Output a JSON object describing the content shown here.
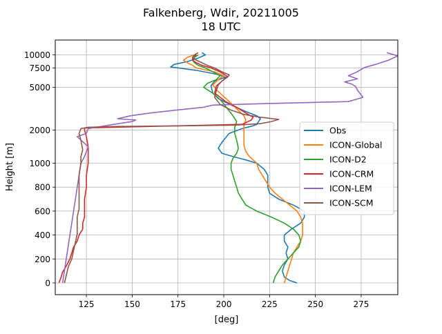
{
  "chart_data": {
    "type": "line",
    "title": "Falkenberg, Wdir, 20211005",
    "subtitle": "18 UTC",
    "xlabel": "[deg]",
    "ylabel": "Height [m]",
    "xlim": [
      108,
      295
    ],
    "x_ticks": [
      125,
      150,
      175,
      200,
      225,
      250,
      275
    ],
    "y_ticks": [
      {
        "value": 0,
        "label": "0"
      },
      {
        "value": 200,
        "label": "200"
      },
      {
        "value": 400,
        "label": "400"
      },
      {
        "value": 600,
        "label": "600"
      },
      {
        "value": 800,
        "label": "800"
      },
      {
        "value": 1000,
        "label": "1000"
      },
      {
        "value": 2000,
        "label": "2000"
      },
      {
        "value": 5000,
        "label": "5000"
      },
      {
        "value": 7500,
        "label": "7500"
      },
      {
        "value": 10000,
        "label": "10000"
      }
    ],
    "grid": true,
    "legend_position": "center-right",
    "series": [
      {
        "name": "Obs",
        "color": "#1f77b4",
        "points": [
          [
            240,
            0
          ],
          [
            236,
            20
          ],
          [
            233,
            50
          ],
          [
            232,
            100
          ],
          [
            233,
            150
          ],
          [
            235,
            200
          ],
          [
            234,
            250
          ],
          [
            235,
            300
          ],
          [
            233,
            350
          ],
          [
            233,
            400
          ],
          [
            237,
            450
          ],
          [
            242,
            500
          ],
          [
            244,
            550
          ],
          [
            244,
            600
          ],
          [
            238,
            650
          ],
          [
            230,
            700
          ],
          [
            225,
            750
          ],
          [
            224,
            800
          ],
          [
            224,
            850
          ],
          [
            224,
            900
          ],
          [
            222,
            950
          ],
          [
            218,
            1000
          ],
          [
            212,
            1100
          ],
          [
            205,
            1200
          ],
          [
            199,
            1300
          ],
          [
            197,
            1450
          ],
          [
            198,
            1550
          ],
          [
            200,
            1700
          ],
          [
            203,
            1900
          ],
          [
            210,
            2100
          ],
          [
            216,
            2300
          ],
          [
            218,
            2400
          ],
          [
            219,
            2600
          ],
          [
            220,
            2800
          ],
          [
            218,
            3000
          ],
          [
            212,
            3300
          ],
          [
            205,
            3700
          ],
          [
            197,
            4200
          ],
          [
            194,
            4600
          ],
          [
            193,
            5200
          ],
          [
            195,
            5800
          ],
          [
            201,
            6300
          ],
          [
            196,
            6700
          ],
          [
            185,
            7200
          ],
          [
            171,
            7700
          ],
          [
            173,
            8200
          ],
          [
            180,
            8700
          ],
          [
            186,
            9400
          ],
          [
            190,
            10000
          ],
          [
            188,
            10500
          ]
        ]
      },
      {
        "name": "ICON-Global",
        "color": "#ff7f0e",
        "points": [
          [
            233,
            0
          ],
          [
            234,
            50
          ],
          [
            235,
            100
          ],
          [
            236,
            150
          ],
          [
            237,
            200
          ],
          [
            238,
            250
          ],
          [
            240,
            300
          ],
          [
            242,
            350
          ],
          [
            243,
            400
          ],
          [
            243,
            450
          ],
          [
            243,
            500
          ],
          [
            242,
            550
          ],
          [
            240,
            600
          ],
          [
            236,
            650
          ],
          [
            232,
            700
          ],
          [
            228,
            750
          ],
          [
            225,
            800
          ],
          [
            223,
            850
          ],
          [
            221,
            900
          ],
          [
            219,
            950
          ],
          [
            218,
            1000
          ],
          [
            216,
            1100
          ],
          [
            214,
            1200
          ],
          [
            212,
            1350
          ],
          [
            211,
            1550
          ],
          [
            211,
            1750
          ],
          [
            211,
            2000
          ],
          [
            211,
            2300
          ],
          [
            212,
            2700
          ],
          [
            211,
            3000
          ],
          [
            207,
            3500
          ],
          [
            203,
            4000
          ],
          [
            197,
            4700
          ],
          [
            194,
            5300
          ],
          [
            197,
            6000
          ],
          [
            200,
            6500
          ],
          [
            195,
            7000
          ],
          [
            185,
            7500
          ],
          [
            183,
            8000
          ],
          [
            180,
            8500
          ],
          [
            178,
            9000
          ],
          [
            180,
            9500
          ],
          [
            184,
            10000
          ],
          [
            186,
            10500
          ]
        ]
      },
      {
        "name": "ICON-D2",
        "color": "#2ca02c",
        "points": [
          [
            227,
            0
          ],
          [
            228,
            50
          ],
          [
            230,
            100
          ],
          [
            232,
            150
          ],
          [
            235,
            200
          ],
          [
            238,
            250
          ],
          [
            241,
            300
          ],
          [
            242,
            350
          ],
          [
            241,
            400
          ],
          [
            238,
            450
          ],
          [
            233,
            500
          ],
          [
            226,
            550
          ],
          [
            218,
            600
          ],
          [
            212,
            650
          ],
          [
            210,
            700
          ],
          [
            208,
            750
          ],
          [
            207,
            800
          ],
          [
            206,
            850
          ],
          [
            205,
            900
          ],
          [
            204,
            950
          ],
          [
            204,
            1000
          ],
          [
            205,
            1150
          ],
          [
            207,
            1300
          ],
          [
            208,
            1450
          ],
          [
            207,
            1700
          ],
          [
            206,
            1900
          ],
          [
            206,
            2200
          ],
          [
            207,
            2600
          ],
          [
            205,
            3000
          ],
          [
            202,
            3500
          ],
          [
            199,
            4000
          ],
          [
            195,
            4500
          ],
          [
            189,
            5000
          ],
          [
            191,
            5500
          ],
          [
            196,
            6000
          ],
          [
            198,
            6500
          ],
          [
            194,
            7000
          ],
          [
            190,
            7500
          ],
          [
            186,
            8000
          ],
          [
            184,
            8500
          ],
          [
            183,
            9000
          ],
          [
            184,
            9500
          ],
          [
            186,
            10000
          ]
        ]
      },
      {
        "name": "ICON-CRM",
        "color": "#d62728",
        "points": [
          [
            110,
            0
          ],
          [
            111,
            40
          ],
          [
            112,
            90
          ],
          [
            114,
            140
          ],
          [
            116,
            200
          ],
          [
            117,
            250
          ],
          [
            118,
            300
          ],
          [
            120,
            350
          ],
          [
            121,
            400
          ],
          [
            123,
            450
          ],
          [
            123,
            500
          ],
          [
            124,
            550
          ],
          [
            124,
            600
          ],
          [
            124,
            700
          ],
          [
            125,
            800
          ],
          [
            125,
            900
          ],
          [
            126,
            1000
          ],
          [
            126,
            1200
          ],
          [
            126,
            1500
          ],
          [
            125,
            1800
          ],
          [
            124,
            2000
          ],
          [
            124,
            2150
          ],
          [
            210,
            2400
          ],
          [
            215,
            2700
          ],
          [
            216,
            2900
          ],
          [
            212,
            3200
          ],
          [
            207,
            3600
          ],
          [
            201,
            4000
          ],
          [
            195,
            4600
          ],
          [
            196,
            5200
          ],
          [
            199,
            5800
          ],
          [
            202,
            6400
          ],
          [
            198,
            7000
          ],
          [
            193,
            7500
          ],
          [
            188,
            8000
          ],
          [
            185,
            8500
          ],
          [
            183,
            9000
          ],
          [
            183,
            9500
          ],
          [
            185,
            10000
          ]
        ]
      },
      {
        "name": "ICON-LEM",
        "color": "#9467bd",
        "points": [
          [
            112,
            0
          ],
          [
            113,
            100
          ],
          [
            114,
            200
          ],
          [
            115,
            300
          ],
          [
            116,
            400
          ],
          [
            117,
            500
          ],
          [
            118,
            600
          ],
          [
            119,
            700
          ],
          [
            120,
            800
          ],
          [
            121,
            900
          ],
          [
            122,
            1000
          ],
          [
            124,
            1200
          ],
          [
            126,
            1500
          ],
          [
            124,
            1600
          ],
          [
            120,
            1800
          ],
          [
            125,
            1900
          ],
          [
            126,
            2100
          ],
          [
            140,
            2400
          ],
          [
            150,
            2600
          ],
          [
            152,
            2700
          ],
          [
            142,
            2800
          ],
          [
            149,
            3000
          ],
          [
            160,
            3200
          ],
          [
            174,
            3400
          ],
          [
            189,
            3600
          ],
          [
            194,
            3750
          ],
          [
            220,
            3850
          ],
          [
            268,
            4000
          ],
          [
            276,
            4300
          ],
          [
            273,
            4800
          ],
          [
            272,
            5100
          ],
          [
            270,
            5400
          ],
          [
            266,
            5700
          ],
          [
            273,
            6100
          ],
          [
            268,
            6500
          ],
          [
            272,
            6900
          ],
          [
            275,
            7300
          ],
          [
            277,
            7600
          ],
          [
            283,
            8200
          ],
          [
            290,
            9000
          ],
          [
            295,
            9800
          ],
          [
            289,
            10500
          ]
        ]
      },
      {
        "name": "ICON-SCM",
        "color": "#8c564b",
        "points": [
          [
            113,
            0
          ],
          [
            114,
            60
          ],
          [
            115,
            130
          ],
          [
            117,
            200
          ],
          [
            118,
            270
          ],
          [
            119,
            340
          ],
          [
            120,
            410
          ],
          [
            120,
            480
          ],
          [
            120,
            550
          ],
          [
            121,
            620
          ],
          [
            121,
            700
          ],
          [
            121,
            800
          ],
          [
            121,
            900
          ],
          [
            122,
            1000
          ],
          [
            122,
            1200
          ],
          [
            123,
            1400
          ],
          [
            122,
            1700
          ],
          [
            121,
            1900
          ],
          [
            122,
            2100
          ],
          [
            126,
            2200
          ],
          [
            141,
            2250
          ],
          [
            178,
            2300
          ],
          [
            206,
            2350
          ],
          [
            220,
            2450
          ],
          [
            226,
            2600
          ],
          [
            230,
            2750
          ],
          [
            220,
            2900
          ],
          [
            211,
            3100
          ],
          [
            204,
            3400
          ],
          [
            198,
            3800
          ],
          [
            195,
            4300
          ],
          [
            196,
            4800
          ],
          [
            197,
            5300
          ],
          [
            199,
            5800
          ],
          [
            202,
            6300
          ],
          [
            203,
            6600
          ],
          [
            199,
            7000
          ],
          [
            195,
            7500
          ],
          [
            191,
            8000
          ],
          [
            188,
            8500
          ],
          [
            185,
            9000
          ],
          [
            183,
            9500
          ],
          [
            184,
            10000
          ],
          [
            186,
            10500
          ]
        ]
      }
    ]
  }
}
